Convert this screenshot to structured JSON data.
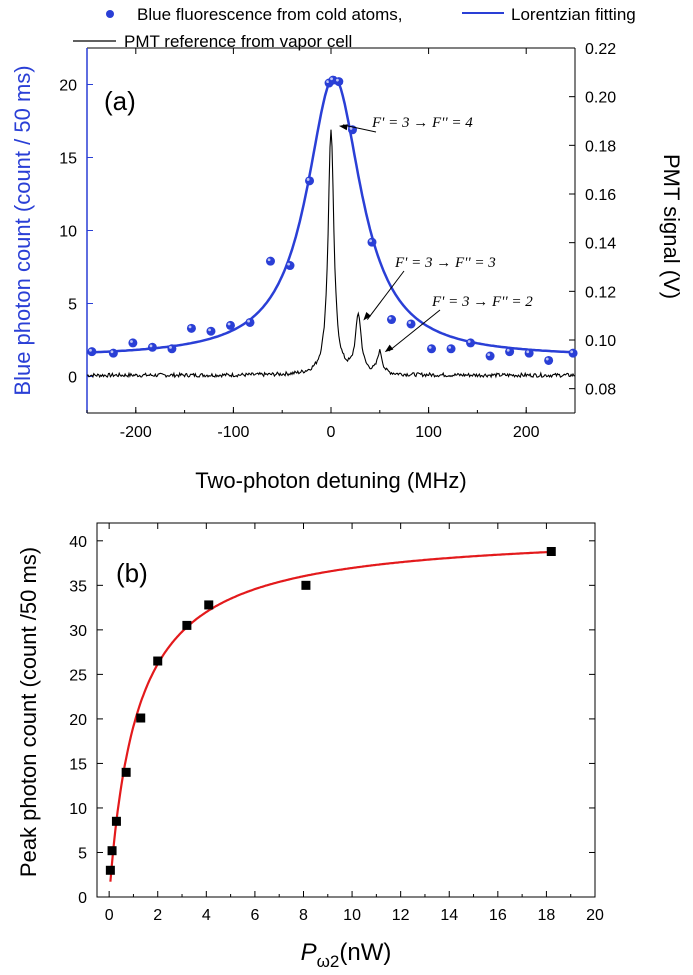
{
  "chart_data": [
    {
      "panel_label": "(a)",
      "type": "scatter",
      "legend": {
        "entries": [
          "Blue fluorescence from cold atoms,",
          "Lorentzian fitting",
          "PMT reference from vapor cell"
        ],
        "placement": "top"
      },
      "xlabel": "Two-photon detuning (MHz)",
      "ylabel_left": "Blue photon count (count / 50 ms)",
      "ylabel_right": "PMT signal (V)",
      "xlim": [
        -250,
        250
      ],
      "ylim_left": [
        -2.5,
        22.5
      ],
      "ylim_right": [
        0.07,
        0.22
      ],
      "xticks": [
        "-200",
        "-100",
        "0",
        "100",
        "200"
      ],
      "yticks_left": [
        "0",
        "5",
        "10",
        "15",
        "20"
      ],
      "yticks_right": [
        "0.08",
        "0.10",
        "0.12",
        "0.14",
        "0.16",
        "0.18",
        "0.20",
        "0.22"
      ],
      "colors": {
        "fluorescence": "#2a3fd6",
        "pmt": "#000000",
        "axis_left": "#2a3fd6"
      },
      "series": [
        {
          "name": "Blue fluorescence from cold atoms,",
          "kind": "points",
          "x": [
            -245,
            -223,
            -203,
            -183,
            -163,
            -143,
            -123,
            -103,
            -83,
            -62,
            -42,
            -22,
            -2,
            2,
            8,
            22,
            42,
            62,
            82,
            103,
            123,
            143,
            163,
            183,
            203,
            223,
            248
          ],
          "y": [
            1.7,
            1.6,
            2.3,
            2.0,
            1.9,
            3.3,
            3.1,
            3.5,
            3.7,
            7.9,
            7.6,
            13.4,
            20.1,
            20.3,
            20.2,
            16.9,
            9.2,
            3.9,
            3.6,
            1.9,
            1.9,
            2.3,
            1.4,
            1.7,
            1.6,
            1.1,
            1.6
          ]
        },
        {
          "name": "Lorentzian fitting",
          "kind": "lorentzian",
          "offset": 1.3,
          "amplitude": 19.2,
          "center": 3,
          "hwhm": 34
        },
        {
          "name": "PMT reference from vapor cell",
          "kind": "line",
          "baseline": 0.0855,
          "noise": 0.0008,
          "peaks": [
            {
              "x": 0,
              "height": 0.101,
              "hwhm": 3.5
            },
            {
              "x": 28,
              "height": 0.024,
              "hwhm": 3.5
            },
            {
              "x": 50,
              "height": 0.009,
              "hwhm": 3.0
            }
          ]
        }
      ],
      "annotations": [
        {
          "text": "F' = 3 → F'' = 4",
          "target_x": 3,
          "target_y_right": 0.188
        },
        {
          "text": "F' = 3 → F'' = 3",
          "target_x": 28,
          "target_y_right": 0.108
        },
        {
          "text": "F' = 3 → F'' = 2",
          "target_x": 50,
          "target_y_right": 0.095
        }
      ]
    },
    {
      "panel_label": "(b)",
      "type": "scatter",
      "xlabel": "P",
      "xlabel_subscript": "ω2",
      "xlabel_unit": "(nW)",
      "ylabel": "Peak photon count (count /50 ms)",
      "xlim": [
        -0.5,
        20
      ],
      "ylim": [
        0,
        42
      ],
      "xticks": [
        "0",
        "2",
        "4",
        "6",
        "8",
        "10",
        "12",
        "14",
        "16",
        "18",
        "20"
      ],
      "yticks": [
        "0",
        "5",
        "10",
        "15",
        "20",
        "25",
        "30",
        "35",
        "40"
      ],
      "colors": {
        "points": "#000000",
        "fit": "#e31a1c"
      },
      "series": [
        {
          "kind": "points",
          "x": [
            0.05,
            0.12,
            0.3,
            0.7,
            1.3,
            2.0,
            3.2,
            4.1,
            8.1,
            18.2
          ],
          "y": [
            3.0,
            5.2,
            8.5,
            14.0,
            20.1,
            26.5,
            30.5,
            32.8,
            35.0,
            38.8
          ]
        },
        {
          "kind": "saturation_fit",
          "vmax": 41.2,
          "k": 1.15,
          "x_start": 0.05,
          "x_end": 18.3
        }
      ]
    }
  ]
}
